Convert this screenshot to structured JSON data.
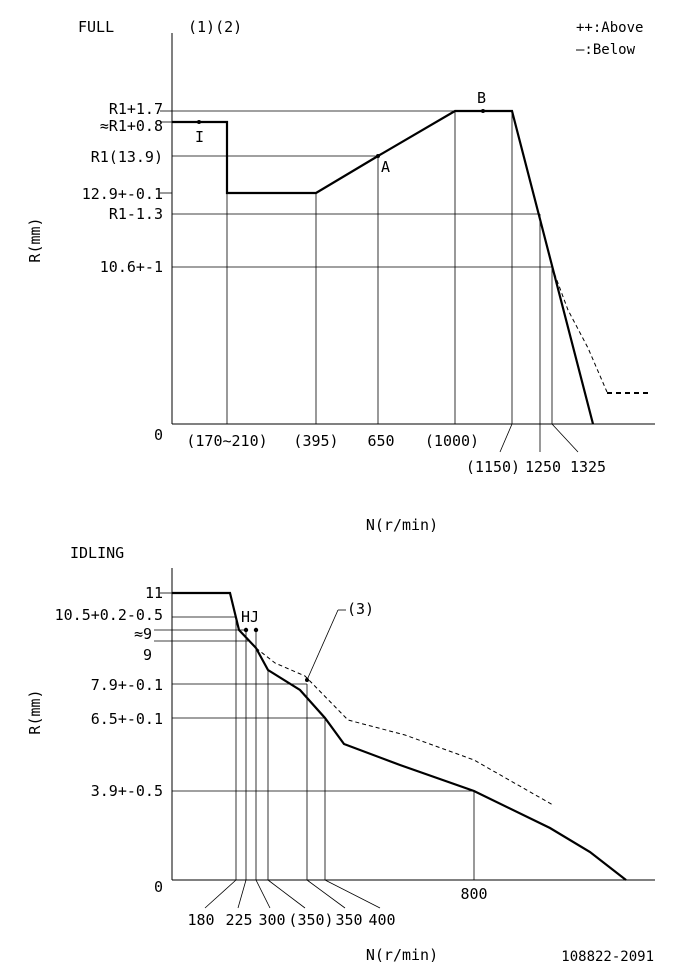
{
  "legend": {
    "above": "++:Above",
    "below": "—:Below"
  },
  "full": {
    "title": "FULL",
    "notes": "(1)(2)",
    "y_axis_label": "R(mm)",
    "x_axis_label": "N(r/min)",
    "origin": "0",
    "y_labels": [
      "R1+1.7",
      "≈R1+0.8",
      "R1(13.9)",
      "12.9+-0.1",
      "R1-1.3",
      "10.6+-1"
    ],
    "x_labels": [
      "(170∼210)",
      "(395)",
      "650",
      "(1000)",
      "(1150)",
      "1250",
      "1325"
    ],
    "points": [
      "I",
      "A",
      "B"
    ]
  },
  "idling": {
    "title": "IDLING",
    "y_axis_label": "R(mm)",
    "x_axis_label": "N(r/min)",
    "origin": "0",
    "y_labels": [
      "11",
      "10.5+0.2-0.5",
      "≈9",
      "9",
      "7.9+-0.1",
      "6.5+-0.1",
      "3.9+-0.5"
    ],
    "x_labels": [
      "180",
      "225",
      "300",
      "(350)",
      "350",
      "400",
      "800"
    ],
    "points_label": "HJ",
    "callout": "(3)"
  },
  "doc_id": "108822-2091"
}
